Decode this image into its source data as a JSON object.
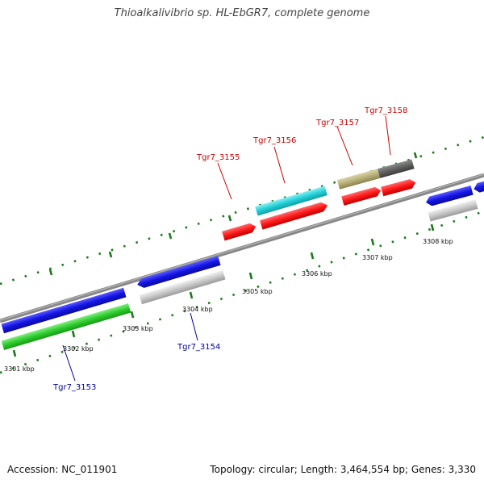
{
  "title": "Thioalkalivibrio sp. HL-EbGR7, complete genome",
  "footer": {
    "accession": "Accession: NC_011901",
    "summary": "Topology: circular; Length: 3,464,554 bp; Genes: 3,330"
  },
  "scale": {
    "unit": "kbp",
    "labels": [
      "3301 kbp",
      "3302 kbp",
      "3303 kbp",
      "3304 kbp",
      "3305 kbp",
      "3306 kbp",
      "3307 kbp",
      "3308 kbp"
    ]
  },
  "gene_labels": {
    "forward": [
      "Tgr7_3155",
      "Tgr7_3156",
      "Tgr7_3157",
      "Tgr7_3158"
    ],
    "reverse": [
      "Tgr7_3153",
      "Tgr7_3154"
    ]
  },
  "colors": {
    "forward_label": "#cc0000",
    "reverse_label": "#000099",
    "backbone": "#888888",
    "ticks": "#1a7a1a",
    "red_cds": "#ff1a1a",
    "blue_cds": "#1414e6",
    "cyan_cds": "#22d0d8",
    "olive_cds": "#b8b078",
    "dark_grey_cds": "#606060",
    "light_grey_cds": "#c8c8c8",
    "green_cds": "#2ecc2e"
  }
}
